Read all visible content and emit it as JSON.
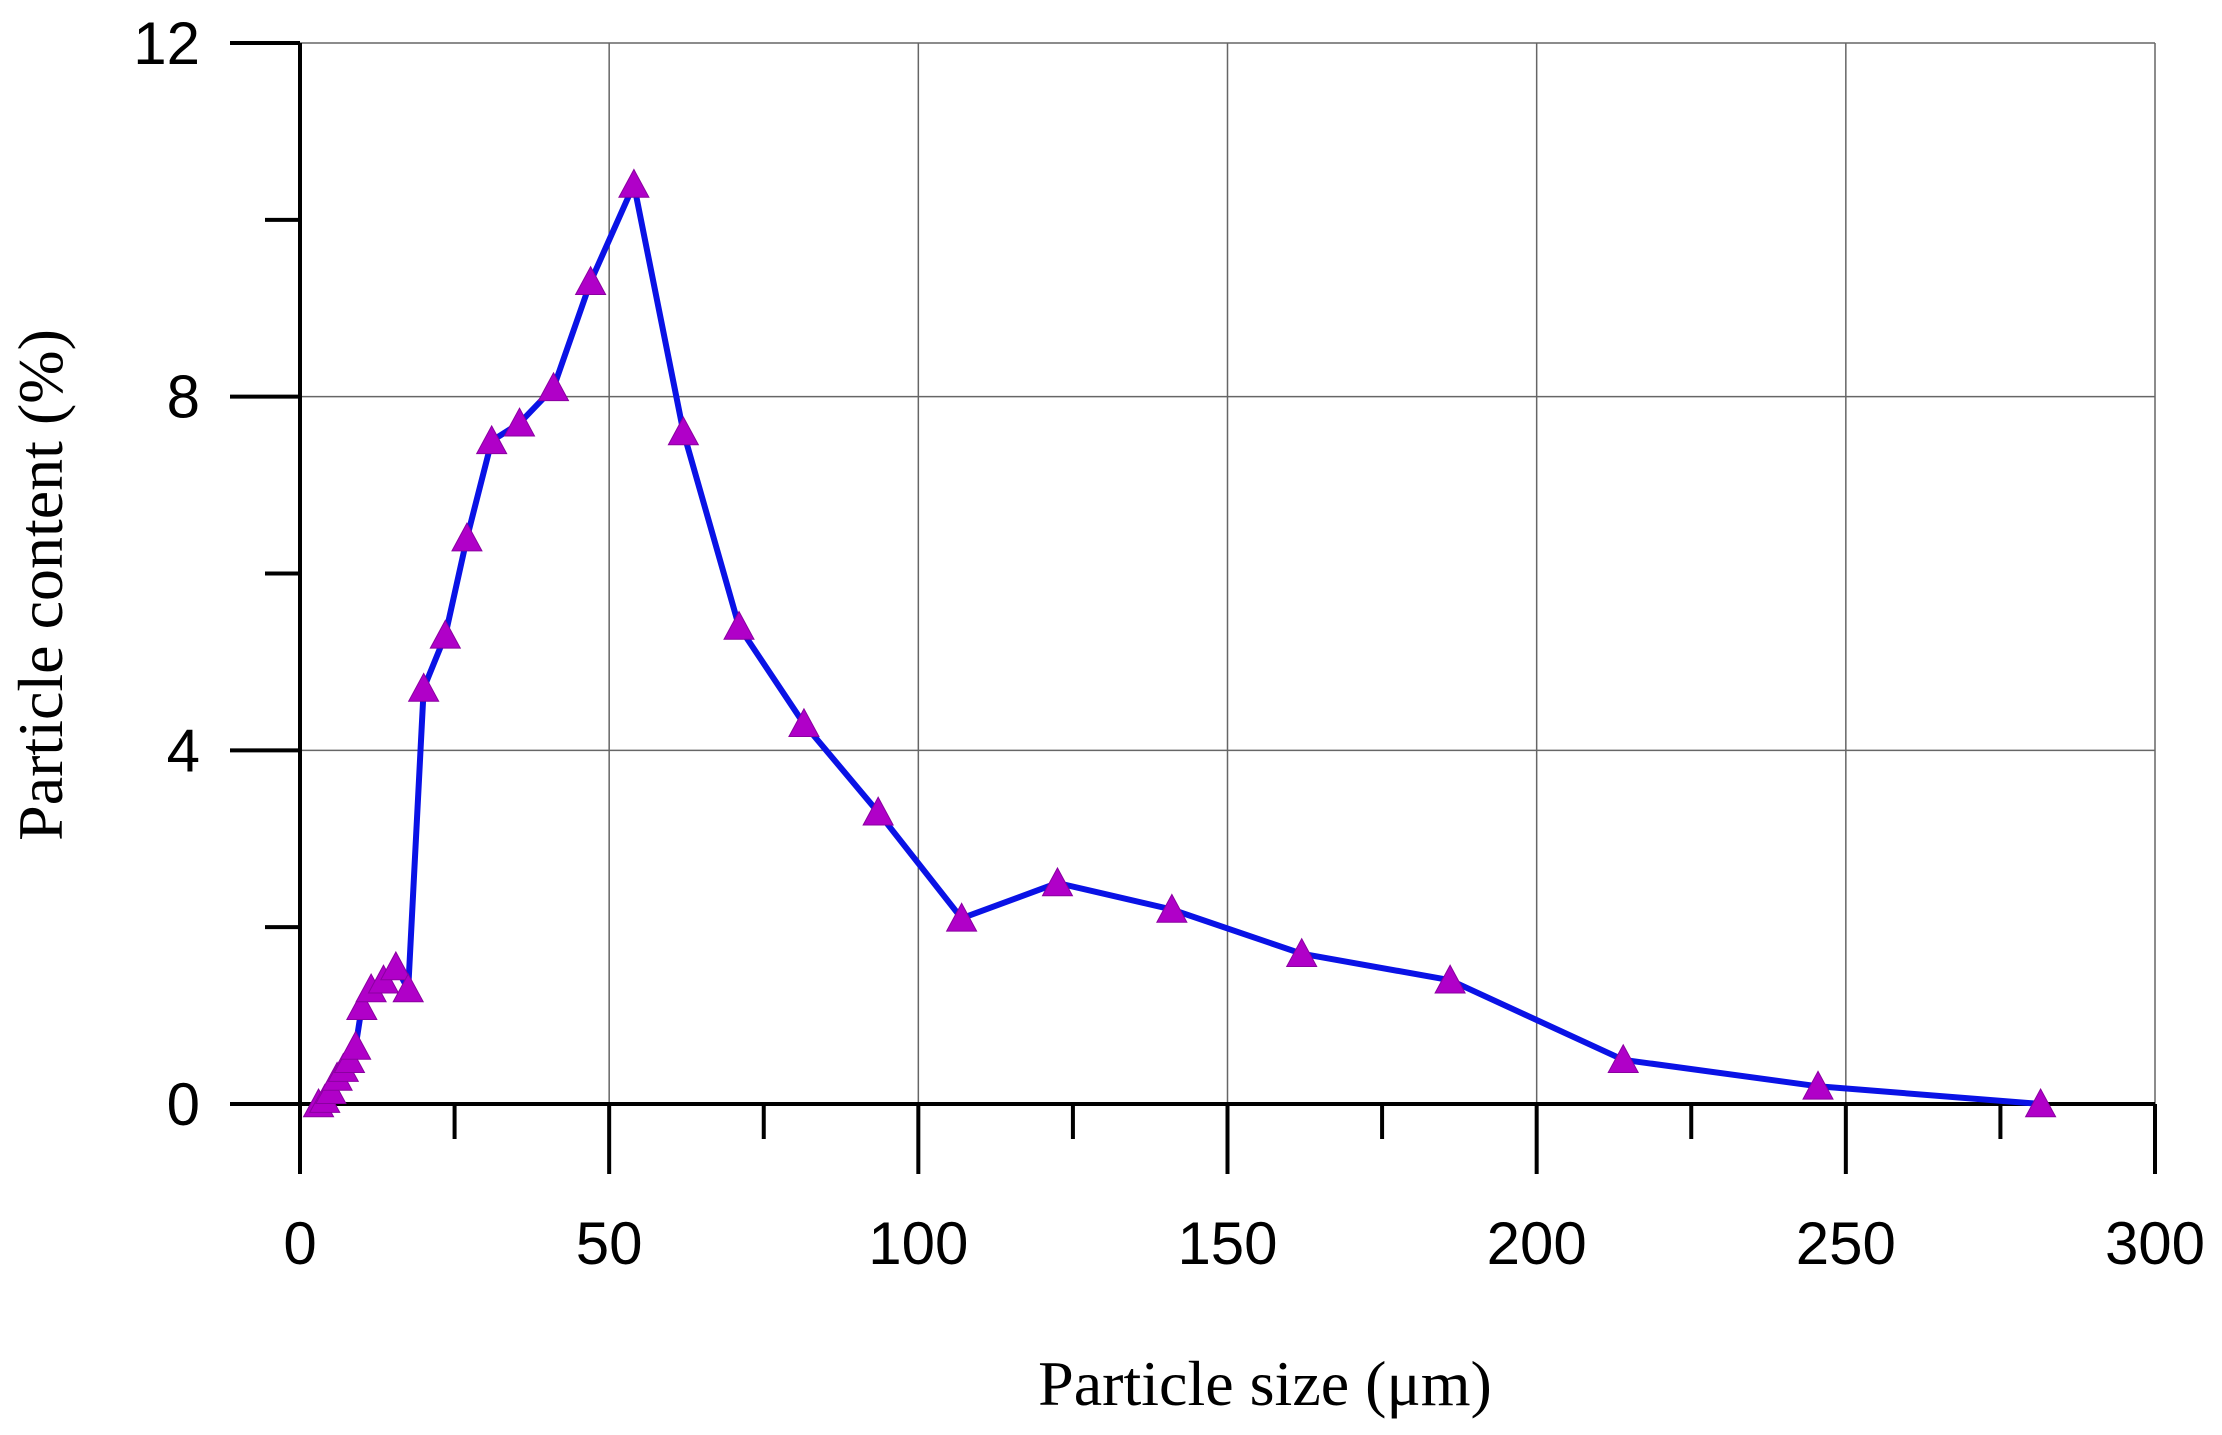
{
  "chart_data": {
    "type": "line",
    "title": "",
    "xlabel": "Particle size (μm)",
    "ylabel": "Particle content (%)",
    "xlim": [
      0,
      300
    ],
    "ylim": [
      0,
      12
    ],
    "x_ticks": [
      0,
      50,
      100,
      150,
      200,
      250,
      300
    ],
    "x_tick_labels": [
      "0",
      "50",
      "100",
      "150",
      "200",
      "250",
      "300"
    ],
    "x_minor_ticks": [
      25,
      75,
      125,
      175,
      225,
      275
    ],
    "y_ticks": [
      0,
      4,
      8,
      12
    ],
    "y_tick_labels": [
      "0",
      "4",
      "8",
      "12"
    ],
    "y_minor_ticks": [
      2,
      6,
      10
    ],
    "grid": true,
    "legend": "none",
    "series": [
      {
        "line_color": "#0a12e6",
        "marker": "triangle",
        "marker_color": "#b000c8",
        "x": [
          3,
          4,
          5,
          6,
          7,
          8,
          9,
          10,
          11.5,
          13.5,
          15.5,
          17.5,
          20,
          23.5,
          27,
          31,
          35.5,
          41,
          47,
          54,
          62,
          71,
          81.5,
          93.5,
          107,
          122.5,
          141,
          162,
          186,
          214,
          245.5,
          281.5
        ],
        "y": [
          0,
          0.05,
          0.15,
          0.3,
          0.4,
          0.5,
          0.65,
          1.1,
          1.3,
          1.4,
          1.55,
          1.3,
          4.7,
          5.3,
          6.4,
          7.5,
          7.7,
          8.1,
          9.3,
          10.4,
          7.6,
          5.4,
          4.3,
          3.3,
          2.1,
          2.5,
          2.2,
          1.7,
          1.4,
          0.5,
          0.2,
          0
        ]
      }
    ]
  }
}
